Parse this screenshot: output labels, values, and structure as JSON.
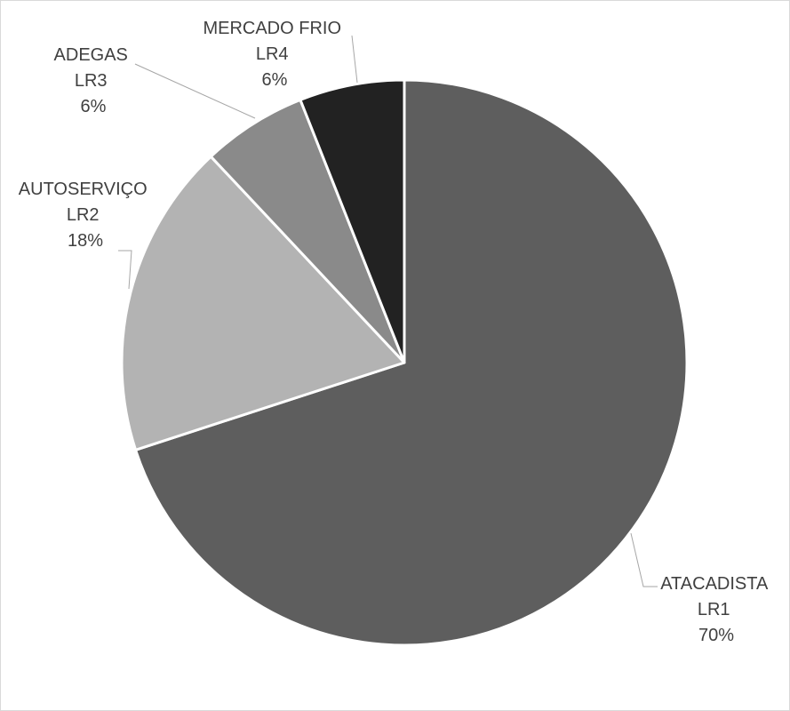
{
  "chart_data": {
    "type": "pie",
    "title": "",
    "slices": [
      {
        "category": "ATACADISTA",
        "code": "LR1",
        "value": 70,
        "label": "70%",
        "color": "#5e5e5e"
      },
      {
        "category": "AUTOSERVIÇO",
        "code": "LR2",
        "value": 18,
        "label": "18%",
        "color": "#b3b3b3"
      },
      {
        "category": "ADEGAS",
        "code": "LR3",
        "value": 6,
        "label": "6%",
        "color": "#8a8a8a"
      },
      {
        "category": "MERCADO FRIO",
        "code": "LR4",
        "value": 6,
        "label": "6%",
        "color": "#222222"
      }
    ],
    "legend": "none",
    "data_labels": "outside with leader lines"
  }
}
